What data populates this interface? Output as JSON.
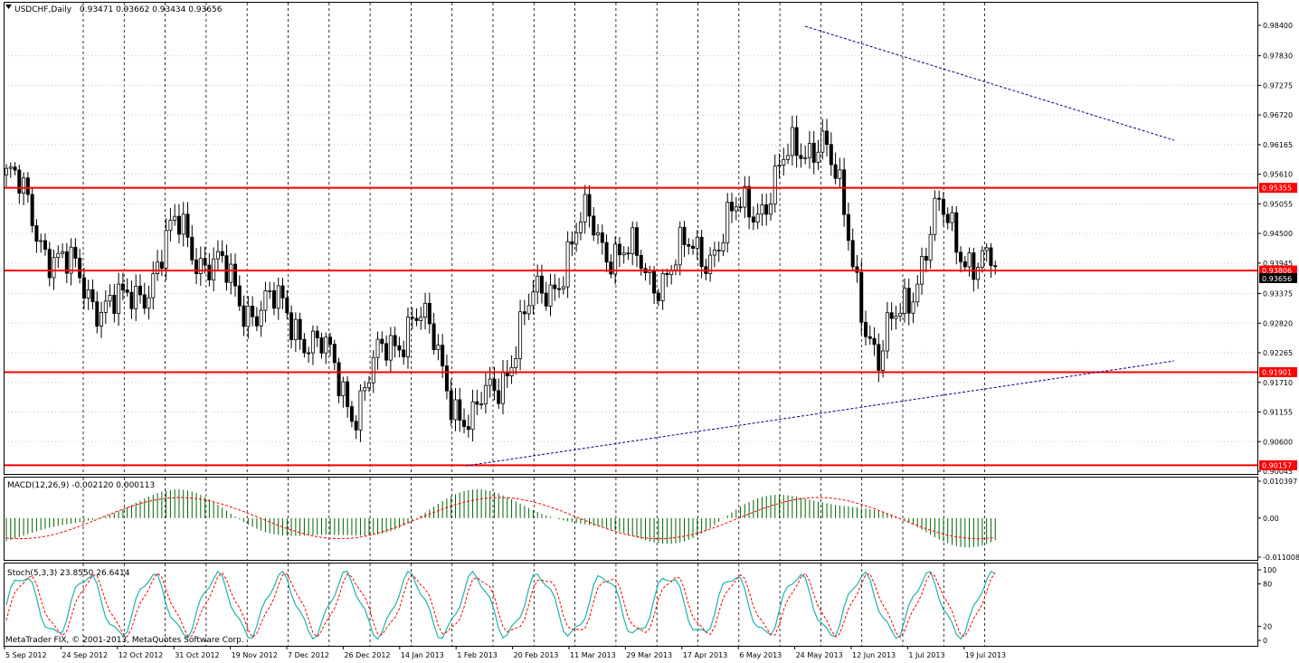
{
  "main": {
    "symbol_label": "USDCHF,Daily",
    "ohlc_label": "0.93471 0.93662 0.93434 0.93656",
    "price_scale": [
      "0.98400",
      "0.97830",
      "0.97275",
      "0.96720",
      "0.96165",
      "0.95610",
      "0.95055",
      "0.94500",
      "0.93945",
      "0.93375",
      "0.92820",
      "0.92265",
      "0.91710",
      "0.91155",
      "0.90600",
      "0.90045"
    ],
    "levels": [
      {
        "value": "0.95355",
        "price": 0.95355
      },
      {
        "value": "0.93806",
        "price": 0.93806
      },
      {
        "value": "0.91901",
        "price": 0.91901
      },
      {
        "value": "0.90157",
        "price": 0.90157
      }
    ],
    "current_price": "0.93656",
    "date_labels": [
      "5 Sep 2012",
      "24 Sep 2012",
      "12 Oct 2012",
      "31 Oct 2012",
      "19 Nov 2012",
      "7 Dec 2012",
      "26 Dec 2012",
      "14 Jan 2013",
      "1 Feb 2013",
      "20 Feb 2013",
      "11 Mar 2013",
      "29 Mar 2013",
      "17 Apr 2013",
      "6 May 2013",
      "24 May 2013",
      "12 Jun 2013",
      "1 Jul 2013",
      "19 Jul 2013"
    ],
    "copyright": "MetaTrader FIX, © 2001-2013, MetaQuotes Software Corp."
  },
  "macd": {
    "label": "MACD(12,26,9) -0.002120 0.000113",
    "scale": [
      "0.010397",
      "0.00",
      "-0.011008"
    ]
  },
  "stoch": {
    "label": "Stoch(5,3,3) 23.8550 26.6414",
    "scale": [
      "100",
      "80",
      "20",
      "0"
    ]
  },
  "colors": {
    "bull": "#ffffff",
    "bear": "#000000",
    "level": "#ff0000",
    "trendline": "#00008b",
    "macd_hist": "#006400",
    "signal": "#ff0000",
    "stoch_main": "#20b2aa",
    "stoch_signal": "#ff0000"
  },
  "chart_data": [
    {
      "type": "candlestick",
      "title": "USDCHF,Daily",
      "ylim": [
        0.90045,
        0.984
      ],
      "x": [
        "5 Sep 2012",
        "24 Sep 2012",
        "12 Oct 2012",
        "31 Oct 2012",
        "19 Nov 2012",
        "7 Dec 2012",
        "26 Dec 2012",
        "14 Jan 2013",
        "1 Feb 2013",
        "20 Feb 2013",
        "11 Mar 2013",
        "29 Mar 2013",
        "17 Apr 2013",
        "6 May 2013",
        "24 May 2013",
        "12 Jun 2013",
        "1 Jul 2013",
        "19 Jul 2013"
      ],
      "close_path": [
        [
          "5 Sep 2012",
          0.956
        ],
        [
          "24 Sep 2012",
          0.938
        ],
        [
          "12 Oct 2012",
          0.93
        ],
        [
          "31 Oct 2012",
          0.946
        ],
        [
          "19 Nov 2012",
          0.933
        ],
        [
          "7 Dec 2012",
          0.929
        ],
        [
          "26 Dec 2012",
          0.913
        ],
        [
          "14 Jan 2013",
          0.931
        ],
        [
          "1 Feb 2013",
          0.908
        ],
        [
          "20 Feb 2013",
          0.93
        ],
        [
          "11 Mar 2013",
          0.947
        ],
        [
          "29 Mar 2013",
          0.937
        ],
        [
          "17 Apr 2013",
          0.942
        ],
        [
          "6 May 2013",
          0.952
        ],
        [
          "24 May 2013",
          0.965
        ],
        [
          "12 Jun 2013",
          0.92
        ],
        [
          "1 Jul 2013",
          0.948
        ],
        [
          "19 Jul 2013",
          0.93656
        ]
      ],
      "horizontal_levels": [
        0.95355,
        0.93806,
        0.91901,
        0.90157
      ]
    },
    {
      "type": "bar",
      "title": "MACD(12,26,9) -0.002120 0.000113",
      "ylim": [
        -0.011008,
        0.010397
      ]
    },
    {
      "type": "line",
      "title": "Stoch(5,3,3) 23.8550 26.6414",
      "ylim": [
        0,
        100
      ]
    }
  ]
}
